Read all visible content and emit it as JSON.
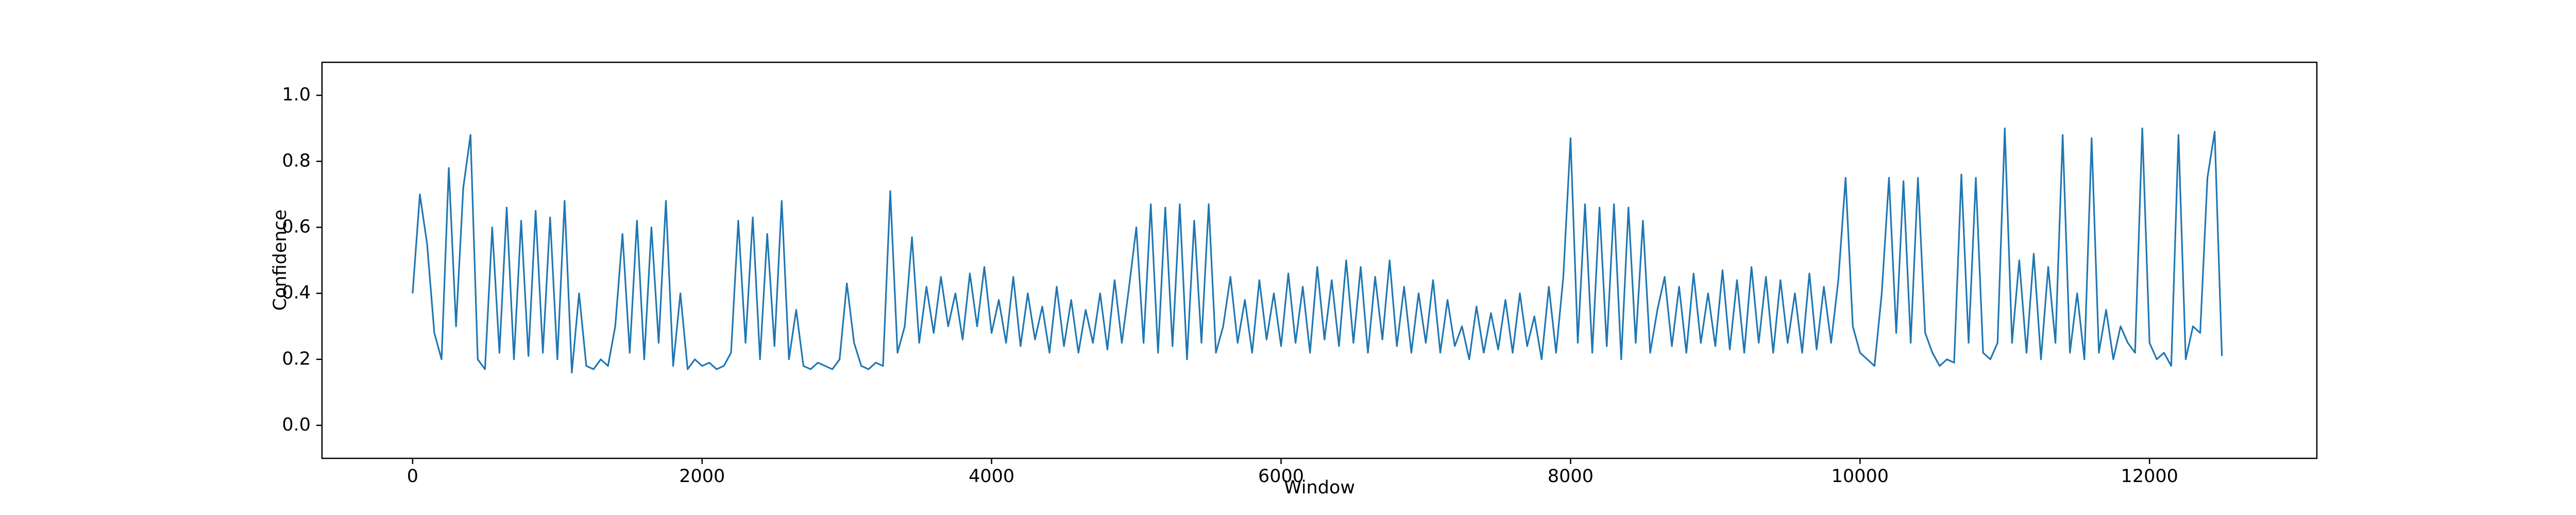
{
  "chart_data": {
    "type": "line",
    "x_label": "Window",
    "y_label": "Confidence",
    "x": [
      0,
      50,
      100,
      150,
      200,
      250,
      300,
      350,
      400,
      450,
      500,
      550,
      600,
      650,
      700,
      750,
      800,
      850,
      900,
      950,
      1000,
      1050,
      1100,
      1150,
      1200,
      1250,
      1300,
      1350,
      1400,
      1450,
      1500,
      1550,
      1600,
      1650,
      1700,
      1750,
      1800,
      1850,
      1900,
      1950,
      2000,
      2050,
      2100,
      2150,
      2200,
      2250,
      2300,
      2350,
      2400,
      2450,
      2500,
      2550,
      2600,
      2650,
      2700,
      2750,
      2800,
      2850,
      2900,
      2950,
      3000,
      3050,
      3100,
      3150,
      3200,
      3250,
      3300,
      3350,
      3400,
      3450,
      3500,
      3550,
      3600,
      3650,
      3700,
      3750,
      3800,
      3850,
      3900,
      3950,
      4000,
      4050,
      4100,
      4150,
      4200,
      4250,
      4300,
      4350,
      4400,
      4450,
      4500,
      4550,
      4600,
      4650,
      4700,
      4750,
      4800,
      4850,
      4900,
      4950,
      5000,
      5050,
      5100,
      5150,
      5200,
      5250,
      5300,
      5350,
      5400,
      5450,
      5500,
      5550,
      5600,
      5650,
      5700,
      5750,
      5800,
      5850,
      5900,
      5950,
      6000,
      6050,
      6100,
      6150,
      6200,
      6250,
      6300,
      6350,
      6400,
      6450,
      6500,
      6550,
      6600,
      6650,
      6700,
      6750,
      6800,
      6850,
      6900,
      6950,
      7000,
      7050,
      7100,
      7150,
      7200,
      7250,
      7300,
      7350,
      7400,
      7450,
      7500,
      7550,
      7600,
      7650,
      7700,
      7750,
      7800,
      7850,
      7900,
      7950,
      8000,
      8050,
      8100,
      8150,
      8200,
      8250,
      8300,
      8350,
      8400,
      8450,
      8500,
      8550,
      8600,
      8650,
      8700,
      8750,
      8800,
      8850,
      8900,
      8950,
      9000,
      9050,
      9100,
      9150,
      9200,
      9250,
      9300,
      9350,
      9400,
      9450,
      9500,
      9550,
      9600,
      9650,
      9700,
      9750,
      9800,
      9850,
      9900,
      9950,
      10000,
      10050,
      10100,
      10150,
      10200,
      10250,
      10300,
      10350,
      10400,
      10450,
      10500,
      10550,
      10600,
      10650,
      10700,
      10750,
      10800,
      10850,
      10900,
      10950,
      11000,
      11050,
      11100,
      11150,
      11200,
      11250,
      11300,
      11350,
      11400,
      11450,
      11500,
      11550,
      11600,
      11650,
      11700,
      11750,
      11800,
      11850,
      11900,
      11950,
      12000,
      12050,
      12100,
      12150,
      12200,
      12250,
      12300,
      12350,
      12400,
      12450,
      12500
    ],
    "series": [
      {
        "color": "#1f77b4",
        "values": [
          0.4,
          0.7,
          0.55,
          0.28,
          0.2,
          0.78,
          0.3,
          0.72,
          0.88,
          0.2,
          0.17,
          0.6,
          0.22,
          0.66,
          0.2,
          0.62,
          0.21,
          0.65,
          0.22,
          0.63,
          0.2,
          0.68,
          0.16,
          0.4,
          0.18,
          0.17,
          0.2,
          0.18,
          0.3,
          0.58,
          0.22,
          0.62,
          0.2,
          0.6,
          0.25,
          0.68,
          0.18,
          0.4,
          0.17,
          0.2,
          0.18,
          0.19,
          0.17,
          0.18,
          0.22,
          0.62,
          0.25,
          0.63,
          0.2,
          0.58,
          0.24,
          0.68,
          0.2,
          0.35,
          0.18,
          0.17,
          0.19,
          0.18,
          0.17,
          0.2,
          0.43,
          0.25,
          0.18,
          0.17,
          0.19,
          0.18,
          0.71,
          0.22,
          0.3,
          0.57,
          0.25,
          0.42,
          0.28,
          0.45,
          0.3,
          0.4,
          0.26,
          0.46,
          0.3,
          0.48,
          0.28,
          0.38,
          0.25,
          0.45,
          0.24,
          0.4,
          0.26,
          0.36,
          0.22,
          0.42,
          0.24,
          0.38,
          0.22,
          0.35,
          0.25,
          0.4,
          0.23,
          0.44,
          0.25,
          0.42,
          0.6,
          0.25,
          0.67,
          0.22,
          0.66,
          0.24,
          0.67,
          0.2,
          0.62,
          0.25,
          0.67,
          0.22,
          0.3,
          0.45,
          0.25,
          0.38,
          0.22,
          0.44,
          0.26,
          0.4,
          0.24,
          0.46,
          0.25,
          0.42,
          0.22,
          0.48,
          0.26,
          0.44,
          0.24,
          0.5,
          0.25,
          0.48,
          0.22,
          0.45,
          0.26,
          0.5,
          0.24,
          0.42,
          0.22,
          0.4,
          0.25,
          0.44,
          0.22,
          0.38,
          0.24,
          0.3,
          0.2,
          0.36,
          0.22,
          0.34,
          0.23,
          0.38,
          0.22,
          0.4,
          0.24,
          0.33,
          0.2,
          0.42,
          0.22,
          0.45,
          0.87,
          0.25,
          0.67,
          0.22,
          0.66,
          0.24,
          0.67,
          0.2,
          0.66,
          0.25,
          0.62,
          0.22,
          0.35,
          0.45,
          0.24,
          0.42,
          0.22,
          0.46,
          0.25,
          0.4,
          0.24,
          0.47,
          0.23,
          0.44,
          0.22,
          0.48,
          0.25,
          0.45,
          0.22,
          0.44,
          0.25,
          0.4,
          0.22,
          0.46,
          0.23,
          0.42,
          0.25,
          0.44,
          0.75,
          0.3,
          0.22,
          0.2,
          0.18,
          0.4,
          0.75,
          0.28,
          0.74,
          0.25,
          0.75,
          0.28,
          0.22,
          0.18,
          0.2,
          0.19,
          0.76,
          0.25,
          0.75,
          0.22,
          0.2,
          0.25,
          0.9,
          0.25,
          0.5,
          0.22,
          0.52,
          0.2,
          0.48,
          0.25,
          0.88,
          0.22,
          0.4,
          0.2,
          0.87,
          0.22,
          0.35,
          0.2,
          0.3,
          0.25,
          0.22,
          0.9,
          0.25,
          0.2,
          0.22,
          0.18,
          0.88,
          0.2,
          0.3,
          0.28,
          0.75,
          0.89,
          0.21
        ]
      }
    ],
    "xlim": [
      -626,
      13156
    ],
    "ylim": [
      -0.1,
      1.1
    ],
    "xticks": [
      0,
      2000,
      4000,
      6000,
      8000,
      10000,
      12000
    ],
    "yticks": [
      {
        "value": 0,
        "label": "0.0"
      },
      0.2,
      0.4,
      0.6,
      0.8,
      {
        "value": 1,
        "label": "1.0"
      }
    ]
  }
}
